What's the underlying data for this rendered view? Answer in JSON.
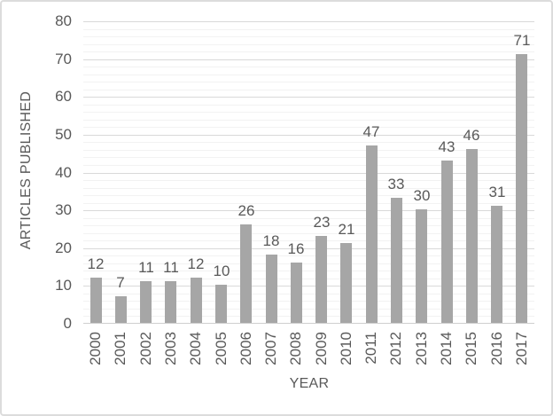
{
  "window": {
    "background": "#ffffff",
    "border_color": "#dcdcdc"
  },
  "chart_data": {
    "type": "bar",
    "title": "",
    "xlabel": "YEAR",
    "ylabel": "ARTICLES PUBLISHED",
    "categories": [
      "2000",
      "2001",
      "2002",
      "2003",
      "2004",
      "2005",
      "2006",
      "2007",
      "2008",
      "2009",
      "2010",
      "2011",
      "2012",
      "2013",
      "2014",
      "2015",
      "2016",
      "2017"
    ],
    "values": [
      12,
      7,
      11,
      11,
      12,
      10,
      26,
      18,
      16,
      23,
      21,
      47,
      33,
      30,
      43,
      46,
      31,
      71
    ],
    "data_labels": [
      12,
      7,
      11,
      11,
      12,
      10,
      26,
      18,
      16,
      23,
      21,
      47,
      33,
      30,
      43,
      46,
      31,
      71
    ],
    "ylim": [
      0,
      80
    ],
    "yticks": [
      0,
      10,
      20,
      30,
      40,
      50,
      60,
      70,
      80
    ],
    "ytick_step": 10,
    "minor_gridline_step": 2,
    "grid": true,
    "legend": false,
    "colors": {
      "bar": "#a6a6a6",
      "major_gridline": "#d9d9d9",
      "minor_gridline": "#f2f2f2",
      "axis_line": "#cfcfcf",
      "text": "#595959"
    }
  }
}
